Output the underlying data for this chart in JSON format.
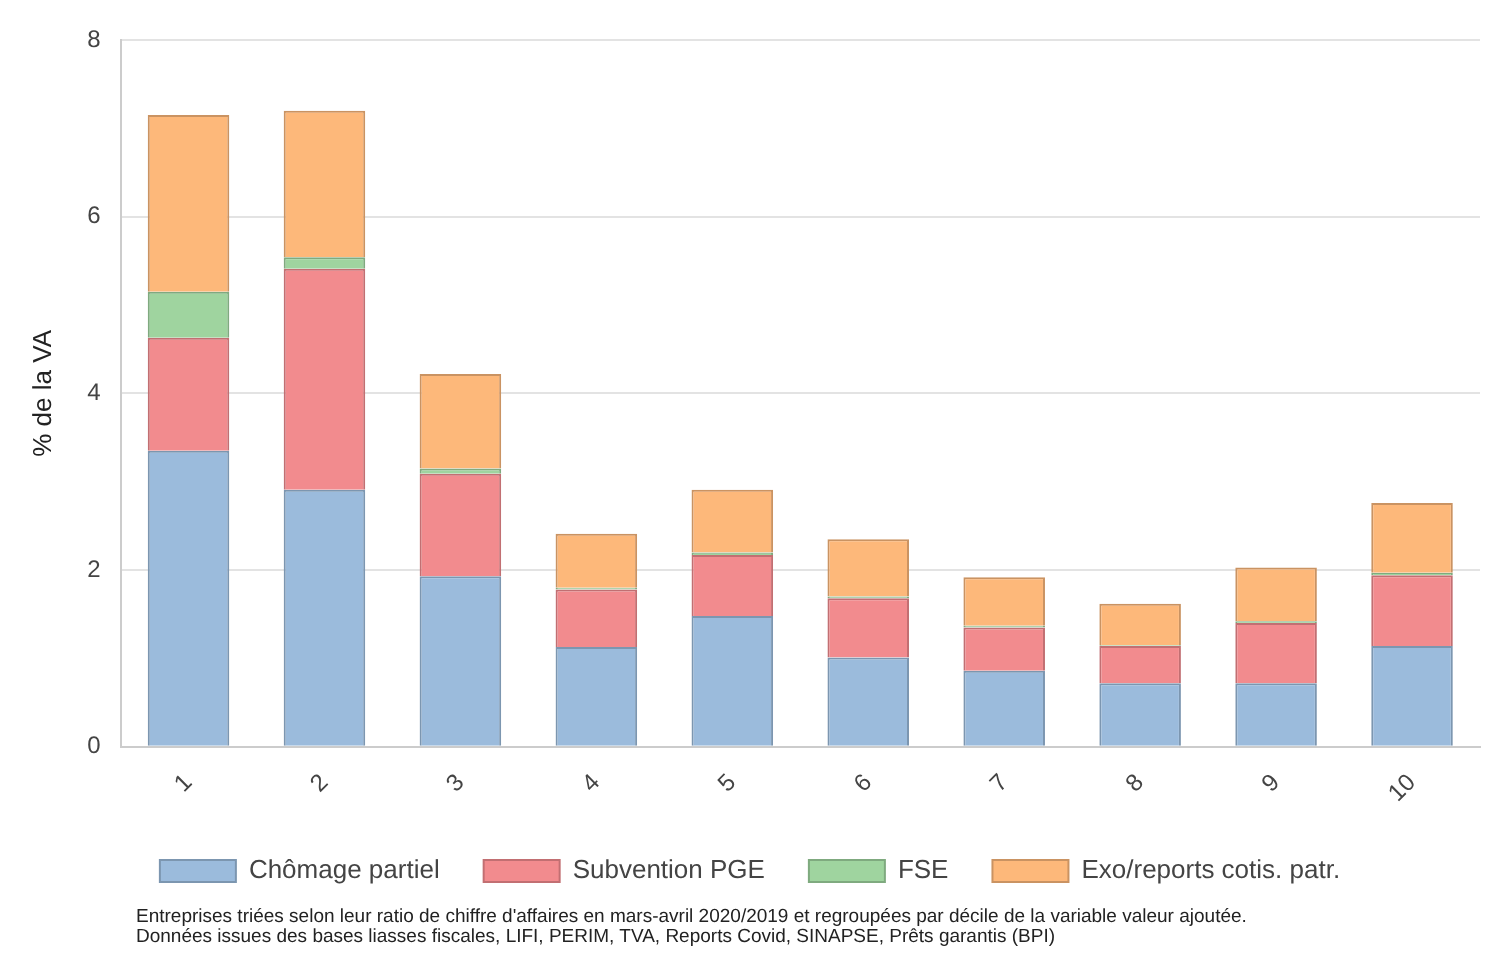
{
  "chart_data": {
    "type": "bar",
    "stacked": true,
    "ylabel": "% de la VA",
    "categories": [
      "1",
      "2",
      "3",
      "4",
      "5",
      "6",
      "7",
      "8",
      "9",
      "10"
    ],
    "series": [
      {
        "name": "Chômage partiel",
        "color": "#9bbbdc",
        "values": [
          3.35,
          2.91,
          1.93,
          1.13,
          1.48,
          1.01,
          0.86,
          0.72,
          0.72,
          1.14
        ]
      },
      {
        "name": "Subvention PGE",
        "color": "#f28b8e",
        "values": [
          1.28,
          2.5,
          1.16,
          0.65,
          0.69,
          0.67,
          0.49,
          0.42,
          0.68,
          0.8
        ]
      },
      {
        "name": "FSE",
        "color": "#9fd49f",
        "values": [
          0.52,
          0.13,
          0.06,
          0.02,
          0.03,
          0.02,
          0.02,
          0.01,
          0.02,
          0.03
        ]
      },
      {
        "name": "Exo/reports cotis. patr.",
        "color": "#fdb87a",
        "values": [
          2.0,
          1.66,
          1.07,
          0.61,
          0.71,
          0.65,
          0.55,
          0.47,
          0.61,
          0.79
        ]
      }
    ],
    "ylim": [
      0,
      8
    ],
    "yticks": [
      0,
      2,
      4,
      6,
      8
    ],
    "grid": "y",
    "legend": "bottom",
    "annotations": [
      "Entreprises triées selon leur ratio de chiffre d'affaires en mars-avril 2020/2019 et regroupées par décile de la variable valeur ajoutée.",
      "Données issues des bases liasses fiscales, LIFI, PERIM, TVA, Reports Covid, SINAPSE, Prêts garantis (BPI)"
    ]
  }
}
